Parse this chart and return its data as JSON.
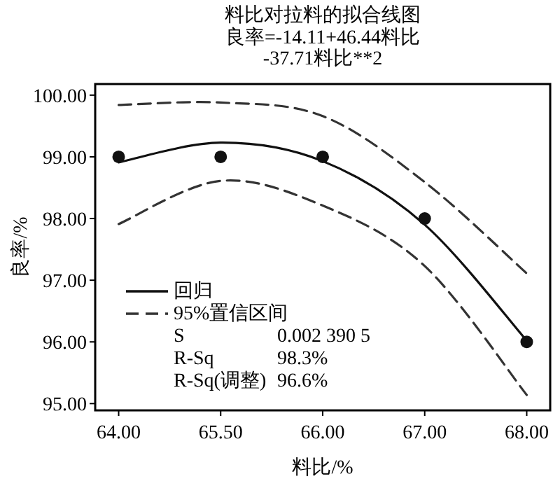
{
  "chart_data": {
    "type": "line",
    "title": "料比对拉料的拟合线图",
    "subtitle": "良率=-14.11+46.44料比\n-37.71料比**2",
    "xlabel": "料比/%",
    "ylabel": "良率/%",
    "categories": [
      "64.00",
      "65.50",
      "66.00",
      "67.00",
      "68.00"
    ],
    "ylim": [
      94.89,
      100.18
    ],
    "yticks": [
      {
        "value": 95,
        "label": "95.00"
      },
      {
        "value": 96,
        "label": "96.00"
      },
      {
        "value": 97,
        "label": "97.00"
      },
      {
        "value": 98,
        "label": "98.00"
      },
      {
        "value": 99,
        "label": "99.00"
      },
      {
        "value": 100,
        "label": "100.00"
      }
    ],
    "legend": "bottom left",
    "series": [
      {
        "type": "scatter",
        "marker": "circle",
        "color": "#111111",
        "x": [
          "64.00",
          "65.50",
          "66.00",
          "67.00",
          "68.00"
        ],
        "values": [
          99,
          99,
          99,
          98,
          96
        ]
      },
      {
        "name": "回归",
        "line_style": "solid",
        "color": "#111111",
        "values": [
          98.91,
          99.23,
          98.93,
          97.9,
          96.02
        ]
      },
      {
        "name": "95%置信区间",
        "line_style": "dashed",
        "color": "#333333",
        "values": [
          97.91,
          98.61,
          98.21,
          97.23,
          95.14
        ]
      },
      {
        "line_style": "dashed",
        "color": "#333333",
        "values": [
          99.84,
          99.88,
          99.66,
          98.59,
          97.11
        ]
      }
    ],
    "annotations": [
      "S",
      "0.002 390 5",
      "R-Sq",
      "98.3%",
      "R-Sq(调整)",
      "96.6%"
    ]
  }
}
